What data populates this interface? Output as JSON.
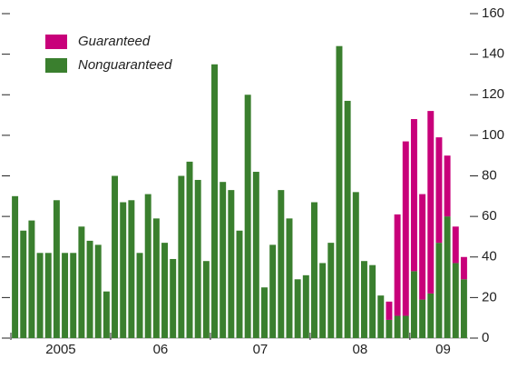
{
  "chart_data": {
    "type": "stacked_bar",
    "categories": [
      null,
      null,
      null,
      null,
      null,
      "2005",
      null,
      null,
      null,
      null,
      null,
      null,
      null,
      null,
      null,
      null,
      null,
      "06",
      null,
      null,
      null,
      null,
      null,
      null,
      null,
      null,
      null,
      null,
      null,
      "07",
      null,
      null,
      null,
      null,
      null,
      null,
      null,
      null,
      null,
      null,
      null,
      "08",
      null,
      null,
      null,
      null,
      null,
      null,
      null,
      null,
      null,
      "09",
      null,
      null,
      null
    ],
    "series": [
      {
        "name": "Nonguaranteed",
        "color": "#3a7f2e",
        "values": [
          70,
          53,
          58,
          42,
          42,
          68,
          42,
          42,
          55,
          48,
          46,
          23,
          80,
          67,
          68,
          42,
          71,
          59,
          47,
          39,
          80,
          87,
          78,
          38,
          135,
          77,
          73,
          53,
          120,
          82,
          25,
          46,
          73,
          59,
          29,
          31,
          67,
          37,
          47,
          144,
          117,
          72,
          38,
          36,
          21,
          9,
          11,
          11,
          33,
          19,
          22,
          47,
          60,
          37,
          29
        ]
      },
      {
        "name": "Guaranteed",
        "color": "#c8007a",
        "values": [
          0,
          0,
          0,
          0,
          0,
          0,
          0,
          0,
          0,
          0,
          0,
          0,
          0,
          0,
          0,
          0,
          0,
          0,
          0,
          0,
          0,
          0,
          0,
          0,
          0,
          0,
          0,
          0,
          0,
          0,
          0,
          0,
          0,
          0,
          0,
          0,
          0,
          0,
          0,
          0,
          0,
          0,
          0,
          0,
          0,
          9,
          50,
          86,
          75,
          52,
          90,
          52,
          30,
          18,
          11
        ]
      }
    ],
    "ylim": [
      0,
      160
    ],
    "yticks": [
      0,
      20,
      40,
      60,
      80,
      100,
      120,
      140,
      160
    ],
    "legend": "top-left"
  }
}
